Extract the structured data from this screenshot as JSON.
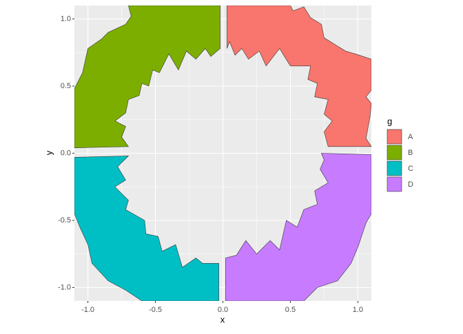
{
  "chart_data": {
    "type": "polygon",
    "x_label": "x",
    "y_label": "y",
    "legend_title": "g",
    "legend_position": "right",
    "grid": true,
    "xlim": [
      -1.1,
      1.1
    ],
    "ylim": [
      -1.1,
      1.1
    ],
    "xticks": [
      {
        "value": -1,
        "label": "-1.0"
      },
      -0.5,
      {
        "value": 0,
        "label": "0.0"
      },
      0.5,
      {
        "value": 1,
        "label": "1.0"
      }
    ],
    "yticks": [
      {
        "value": -1,
        "label": "-1.0"
      },
      -0.5,
      {
        "value": 0,
        "label": "0.0"
      },
      0.5,
      {
        "value": 1,
        "label": "1.0"
      }
    ],
    "series": [
      {
        "name": "A",
        "color": "#F8766D",
        "x": [
          0.03,
          0.5,
          0.52,
          0.6,
          0.65,
          0.73,
          0.75,
          0.83,
          0.91,
          0.98,
          1.1,
          1.1,
          1.06,
          1.1,
          1.09,
          1.06,
          1.1,
          0.78,
          0.75,
          0.81,
          0.75,
          0.78,
          0.68,
          0.7,
          0.63,
          0.65,
          0.5,
          0.45,
          0.42,
          0.32,
          0.27,
          0.19,
          0.14,
          0.09,
          0.05,
          0.03
        ],
        "y": [
          1.1,
          1.1,
          1.06,
          1.09,
          1.01,
          0.96,
          0.86,
          0.81,
          0.76,
          0.74,
          0.7,
          0.47,
          0.42,
          0.37,
          0.27,
          0.11,
          0.05,
          0.05,
          0.16,
          0.24,
          0.29,
          0.4,
          0.42,
          0.52,
          0.55,
          0.65,
          0.65,
          0.73,
          0.78,
          0.65,
          0.76,
          0.7,
          0.78,
          0.73,
          0.83,
          0.78
        ]
      },
      {
        "name": "B",
        "color": "#7CAE00",
        "x": [
          -0.02,
          -0.02,
          -0.09,
          -0.13,
          -0.2,
          -0.27,
          -0.33,
          -0.4,
          -0.47,
          -0.52,
          -0.55,
          -0.6,
          -0.62,
          -0.7,
          -0.72,
          -0.8,
          -0.72,
          -0.75,
          -0.7,
          -1.1,
          -1.1,
          -1.04,
          -1.0,
          -0.9,
          -0.85,
          -0.72,
          -0.68,
          -0.7
        ],
        "y": [
          1.1,
          0.78,
          0.72,
          0.78,
          0.7,
          0.76,
          0.62,
          0.74,
          0.6,
          0.62,
          0.5,
          0.52,
          0.43,
          0.4,
          0.3,
          0.24,
          0.2,
          0.12,
          0.05,
          0.04,
          0.48,
          0.6,
          0.78,
          0.85,
          0.9,
          0.96,
          1.02,
          1.1
        ]
      },
      {
        "name": "C",
        "color": "#00BFC4",
        "x": [
          -1.1,
          -0.7,
          -0.78,
          -0.72,
          -0.8,
          -0.7,
          -0.72,
          -0.58,
          -0.57,
          -0.48,
          -0.45,
          -0.35,
          -0.3,
          -0.2,
          -0.15,
          -0.03,
          -0.03,
          -0.6,
          -0.72,
          -0.85,
          -0.97,
          -1.0,
          -1.06,
          -1.1
        ],
        "y": [
          -0.03,
          -0.02,
          -0.1,
          -0.2,
          -0.25,
          -0.35,
          -0.42,
          -0.5,
          -0.6,
          -0.62,
          -0.73,
          -0.68,
          -0.85,
          -0.78,
          -0.82,
          -0.82,
          -1.1,
          -1.1,
          -1.02,
          -0.95,
          -0.82,
          -0.68,
          -0.55,
          -0.45
        ]
      },
      {
        "name": "D",
        "color": "#C77CFF",
        "x": [
          0.02,
          0.02,
          0.1,
          0.17,
          0.25,
          0.35,
          0.42,
          0.47,
          0.55,
          0.6,
          0.7,
          0.68,
          0.78,
          0.72,
          0.75,
          0.73,
          1.1,
          1.1,
          1.06,
          1.0,
          0.95,
          0.85,
          0.7,
          0.6
        ],
        "y": [
          -1.1,
          -0.78,
          -0.76,
          -0.65,
          -0.75,
          -0.65,
          -0.72,
          -0.5,
          -0.55,
          -0.42,
          -0.38,
          -0.28,
          -0.22,
          -0.12,
          -0.05,
          0.0,
          -0.01,
          -0.45,
          -0.52,
          -0.7,
          -0.82,
          -0.95,
          -1.0,
          -1.1
        ]
      }
    ]
  }
}
